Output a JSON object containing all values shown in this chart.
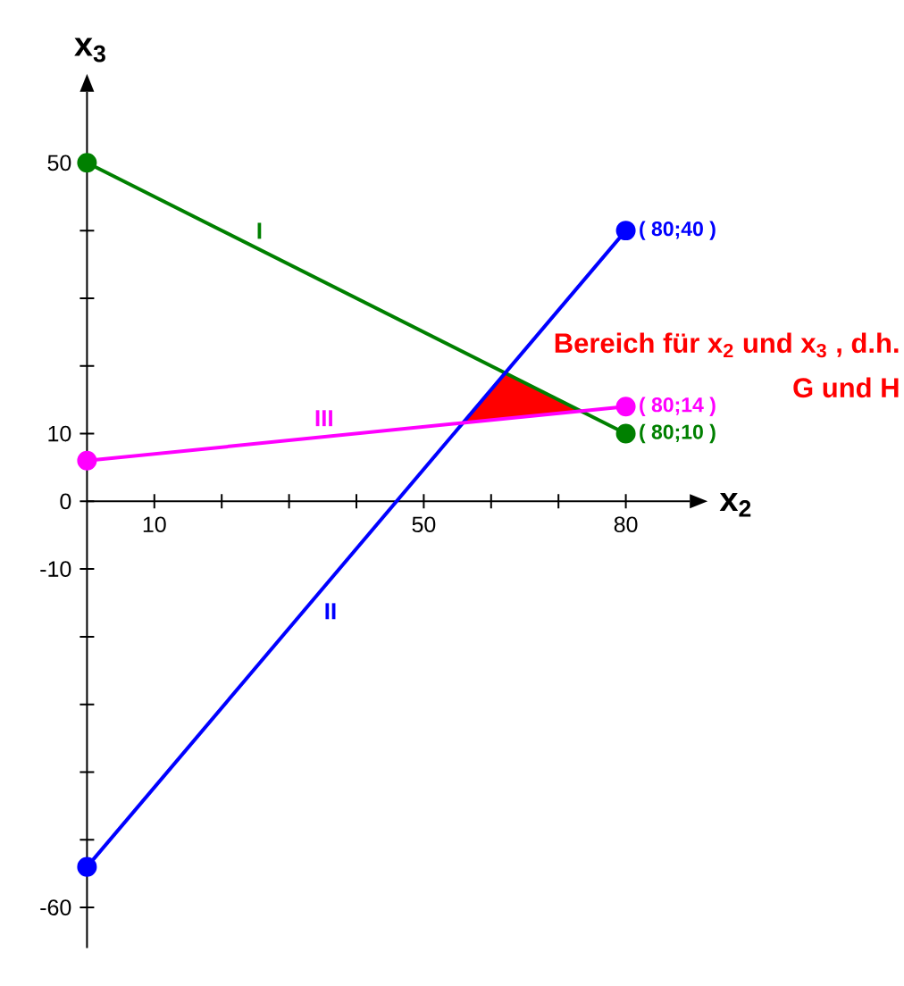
{
  "chart_data": {
    "type": "line",
    "xlabel": "x$_{2}$",
    "ylabel": "x$_{3}$",
    "x": [
      0,
      80
    ],
    "xlim": [
      0,
      89.5
    ],
    "ylim": [
      -66,
      60.5
    ],
    "xticks": [
      10,
      {
        "value": 20,
        "label": null
      },
      {
        "value": 30,
        "label": null
      },
      {
        "value": 40,
        "label": null
      },
      50,
      {
        "value": 60,
        "label": null
      },
      {
        "value": 70,
        "label": null
      },
      80
    ],
    "yticks": [
      -60,
      {
        "value": -50,
        "label": null
      },
      {
        "value": -40,
        "label": null
      },
      {
        "value": -30,
        "label": null
      },
      {
        "value": -20,
        "label": null
      },
      -10,
      0,
      10,
      {
        "value": 20,
        "label": null
      },
      {
        "value": 30,
        "label": null
      },
      {
        "value": 40,
        "label": null
      },
      50
    ],
    "series": [
      {
        "name": "I",
        "color": "#008000",
        "marker": "circle",
        "values": [
          50,
          10
        ],
        "value_labels": [
          null,
          "( 80;10 )"
        ]
      },
      {
        "name": "II",
        "color": "#0000ff",
        "marker": "circle",
        "values": [
          -54,
          40
        ],
        "value_labels": [
          null,
          "( 80;40 )"
        ]
      },
      {
        "name": "III",
        "color": "#ff00ff",
        "marker": "circle",
        "values": [
          6,
          14
        ],
        "value_labels": [
          null,
          "( 80;14 )"
        ]
      },
      {
        "name": "Bereich für x$_{2}$ und x$_{3}$ , d.h. G und H",
        "type": "area",
        "color": "#ff0000",
        "x": [
          55.8,
          62.1,
          73.3
        ],
        "values": [
          null,
          null,
          null
        ],
        "lower": [
          11.6,
          12.2,
          13.3
        ],
        "upper": [
          11.6,
          19,
          13.3
        ]
      }
    ]
  }
}
